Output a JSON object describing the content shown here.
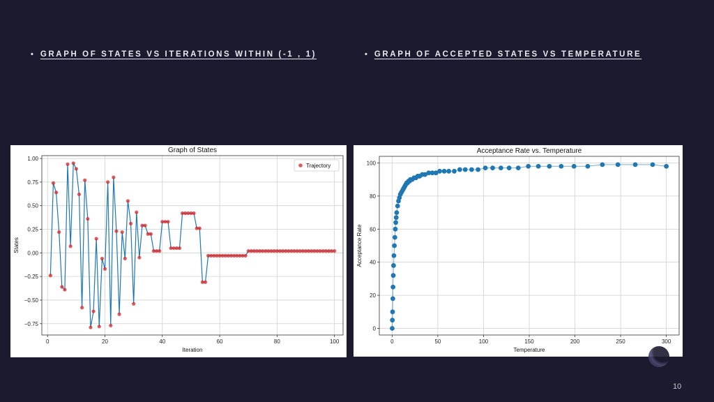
{
  "headings": {
    "left": "GRAPH OF STATES VS ITERATIONS WITHIN (-1 , 1)",
    "right": "GRAPH OF ACCEPTED STATES VS TEMPERATURE",
    "bullet": "•"
  },
  "slide_number": "10",
  "colors": {
    "background": "#1c1a2e",
    "line": "#1f77b4",
    "marker": "#d62728"
  },
  "chart_data": [
    {
      "type": "line",
      "title": "Graph of States",
      "xlabel": "Iteration",
      "ylabel": "States",
      "legend": [
        "Trajectory"
      ],
      "legend_position": "top-right",
      "grid": true,
      "xlim": [
        -2,
        103
      ],
      "ylim": [
        -0.87,
        1.03
      ],
      "xticks": [
        0,
        20,
        40,
        60,
        80,
        100
      ],
      "yticks": [
        -0.75,
        -0.5,
        -0.25,
        0.0,
        0.25,
        0.5,
        0.75,
        1.0
      ],
      "ytick_labels": [
        "−0.75",
        "−0.50",
        "−0.25",
        "0.00",
        "0.25",
        "0.50",
        "0.75",
        "1.00"
      ],
      "x": [
        1,
        2,
        3,
        4,
        5,
        6,
        7,
        8,
        9,
        10,
        11,
        12,
        13,
        14,
        15,
        16,
        17,
        18,
        19,
        20,
        21,
        22,
        23,
        24,
        25,
        26,
        27,
        28,
        29,
        30,
        31,
        32,
        33,
        34,
        35,
        36,
        37,
        38,
        39,
        40,
        41,
        42,
        43,
        44,
        45,
        46,
        47,
        48,
        49,
        50,
        51,
        52,
        53,
        54,
        55,
        56,
        57,
        58,
        59,
        60,
        61,
        62,
        63,
        64,
        65,
        66,
        67,
        68,
        69,
        70,
        71,
        72,
        73,
        74,
        75,
        76,
        77,
        78,
        79,
        80,
        81,
        82,
        83,
        84,
        85,
        86,
        87,
        88,
        89,
        90,
        91,
        92,
        93,
        94,
        95,
        96,
        97,
        98,
        99,
        100
      ],
      "values": [
        -0.24,
        0.74,
        0.64,
        0.22,
        -0.36,
        -0.39,
        0.94,
        0.07,
        0.95,
        0.89,
        0.62,
        -0.58,
        0.77,
        0.36,
        -0.79,
        -0.62,
        0.15,
        -0.78,
        -0.06,
        -0.17,
        0.75,
        -0.77,
        0.8,
        0.23,
        -0.65,
        0.22,
        -0.06,
        0.55,
        0.31,
        -0.54,
        0.43,
        -0.05,
        0.29,
        0.29,
        0.2,
        0.2,
        0.02,
        0.02,
        0.02,
        0.33,
        0.33,
        0.33,
        0.05,
        0.05,
        0.05,
        0.05,
        0.42,
        0.42,
        0.42,
        0.42,
        0.42,
        0.26,
        0.26,
        -0.31,
        -0.31,
        -0.03,
        -0.03,
        -0.03,
        -0.03,
        -0.03,
        -0.03,
        -0.03,
        -0.03,
        -0.03,
        -0.03,
        -0.03,
        -0.03,
        -0.03,
        -0.03,
        0.02,
        0.02,
        0.02,
        0.02,
        0.02,
        0.02,
        0.02,
        0.02,
        0.02,
        0.02,
        0.02,
        0.02,
        0.02,
        0.02,
        0.02,
        0.02,
        0.02,
        0.02,
        0.02,
        0.02,
        0.02,
        0.02,
        0.02,
        0.02,
        0.02,
        0.02,
        0.02,
        0.02,
        0.02,
        0.02,
        0.02
      ]
    },
    {
      "type": "scatter",
      "title": "Acceptance Rate vs. Temperature",
      "xlabel": "Temperature",
      "ylabel": "Acceptance Rate",
      "grid": true,
      "xlim": [
        -14,
        314
      ],
      "ylim": [
        -4,
        104
      ],
      "xticks": [
        0,
        50,
        100,
        150,
        200,
        250,
        300
      ],
      "yticks": [
        0,
        20,
        40,
        60,
        80,
        100
      ],
      "x": [
        0.1,
        0.3,
        0.5,
        0.8,
        1,
        1.3,
        1.6,
        2,
        2.5,
        3,
        3.5,
        4,
        4.5,
        5,
        6,
        7,
        8,
        9,
        10,
        11,
        12,
        13,
        14,
        15,
        16,
        17,
        18,
        19,
        20,
        22,
        24,
        26,
        28,
        30,
        33,
        36,
        40,
        44,
        48,
        52,
        57,
        62,
        68,
        74,
        80,
        87,
        94,
        102,
        110,
        119,
        128,
        138,
        149,
        160,
        172,
        185,
        199,
        214,
        230,
        247,
        266,
        285,
        300
      ],
      "values": [
        0,
        5,
        10,
        18,
        25,
        32,
        38,
        44,
        50,
        55,
        60,
        64,
        67,
        70,
        74,
        77,
        79,
        81,
        82,
        83,
        84,
        85,
        86,
        87,
        88,
        88,
        89,
        89,
        90,
        90,
        91,
        91,
        92,
        92,
        93,
        93,
        94,
        94,
        94,
        95,
        95,
        95,
        95,
        96,
        96,
        96,
        96,
        97,
        97,
        97,
        97,
        97,
        98,
        98,
        98,
        98,
        98,
        98,
        99,
        99,
        99,
        99,
        98
      ]
    }
  ]
}
